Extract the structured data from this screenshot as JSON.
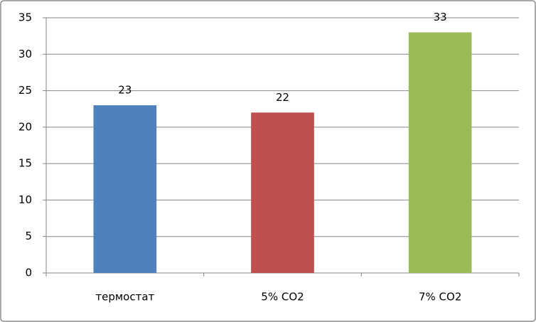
{
  "chart_data": {
    "type": "bar",
    "categories": [
      "термостат",
      "5% CO2",
      "7% CO2"
    ],
    "values": [
      23,
      22,
      33
    ],
    "colors": [
      "#4f81bd",
      "#c0504d",
      "#9bbb59"
    ],
    "ylim": [
      0,
      35
    ],
    "yticks": [
      0,
      5,
      10,
      15,
      20,
      25,
      30,
      35
    ],
    "grid": true,
    "data_labels": true
  }
}
